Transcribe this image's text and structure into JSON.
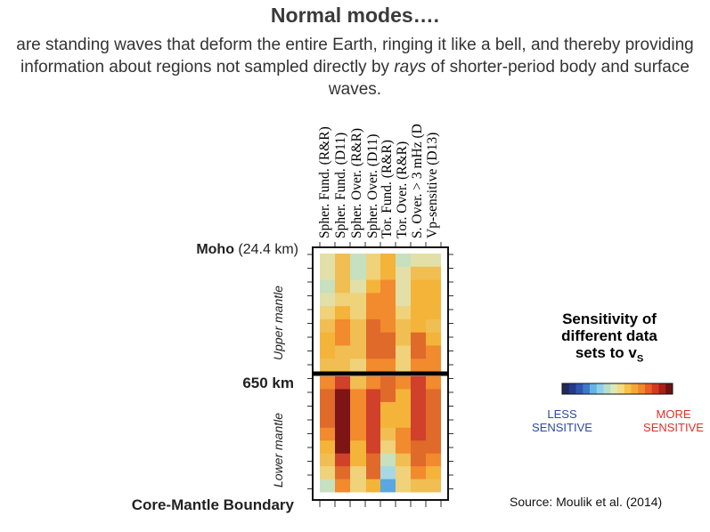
{
  "header": {
    "title": "Normal modes….",
    "subtitle_before": "are standing waves that deform the entire Earth, ringing it like a bell, and thereby providing information about regions not sampled directly by ",
    "subtitle_italic": "rays",
    "subtitle_after": " of shorter-period body and surface waves."
  },
  "figure": {
    "columns": [
      "Spher. Fund. (R&R)",
      "Spher. Fund. (D11)",
      "Spher. Over. (R&R)",
      "Spher. Over. (D11)",
      "Tor. Fund. (R&R)",
      "Tor. Over. (R&R)",
      "S. Over. > 3 mHz (D",
      "Vp-sensitive (D13)"
    ],
    "moho_bold": "Moho",
    "moho_depth": "(24.4 km)",
    "label_650": "650 km",
    "label_cmb": "Core-Mantle Boundary",
    "upper_mantle": "Upper mantle",
    "lower_mantle": "Lower mantle",
    "scale": "sensitivity index 0 (least sensitive) to 11 (most sensitive); upper mantle 9 rows, lower mantle 9 rows",
    "upper_rows": [
      [
        4,
        6,
        3,
        5,
        7,
        3,
        4,
        4
      ],
      [
        4,
        6,
        3,
        5,
        7,
        4,
        6,
        6
      ],
      [
        3,
        6,
        4,
        7,
        8,
        4,
        7,
        7
      ],
      [
        4,
        5,
        5,
        8,
        8,
        4,
        7,
        7
      ],
      [
        5,
        7,
        5,
        8,
        8,
        5,
        7,
        7
      ],
      [
        6,
        8,
        6,
        9,
        8,
        6,
        7,
        6
      ],
      [
        7,
        8,
        6,
        9,
        9,
        6,
        9,
        7
      ],
      [
        7,
        6,
        6,
        9,
        9,
        5,
        9,
        8
      ],
      [
        6,
        6,
        5,
        8,
        8,
        5,
        8,
        8
      ]
    ],
    "lower_rows": [
      [
        8,
        10,
        6,
        8,
        9,
        8,
        10,
        8
      ],
      [
        9,
        11,
        8,
        10,
        9,
        7,
        10,
        9
      ],
      [
        9,
        11,
        8,
        10,
        7,
        7,
        10,
        9
      ],
      [
        9,
        11,
        8,
        10,
        7,
        7,
        10,
        9
      ],
      [
        8,
        11,
        8,
        10,
        6,
        8,
        10,
        9
      ],
      [
        7,
        11,
        7,
        10,
        5,
        8,
        9,
        9
      ],
      [
        6,
        10,
        7,
        9,
        3,
        6,
        9,
        8
      ],
      [
        5,
        9,
        5,
        9,
        2,
        5,
        8,
        7
      ],
      [
        3,
        8,
        5,
        7,
        0,
        5,
        6,
        6
      ]
    ]
  },
  "colorbar": {
    "colors": [
      "#1e2a5e",
      "#253a8a",
      "#2f55b0",
      "#3d7ac8",
      "#64b4e6",
      "#8fd0ec",
      "#b6dfcc",
      "#dde8b4",
      "#f4dc82",
      "#f5c24a",
      "#f4a83c",
      "#f0882c",
      "#e86024",
      "#d23a22",
      "#a82018",
      "#6a1412"
    ],
    "less_label_1": "LESS",
    "less_label_2": "SENSITIVE",
    "more_label_1": "MORE",
    "more_label_2": "SENSITIVE"
  },
  "side": {
    "line1": "Sensitivity of",
    "line2": "different data",
    "line3": "sets to v",
    "line3_sub": "S"
  },
  "source": "Source: Moulik et al. (2014)",
  "palette": [
    "#5aa8e0",
    "#7cc6ea",
    "#a8d8e4",
    "#c6e0c0",
    "#e2e0a8",
    "#efd27a",
    "#f0be52",
    "#f4b43a",
    "#f28a2e",
    "#e06a2a",
    "#d0402a",
    "#7d1416"
  ]
}
